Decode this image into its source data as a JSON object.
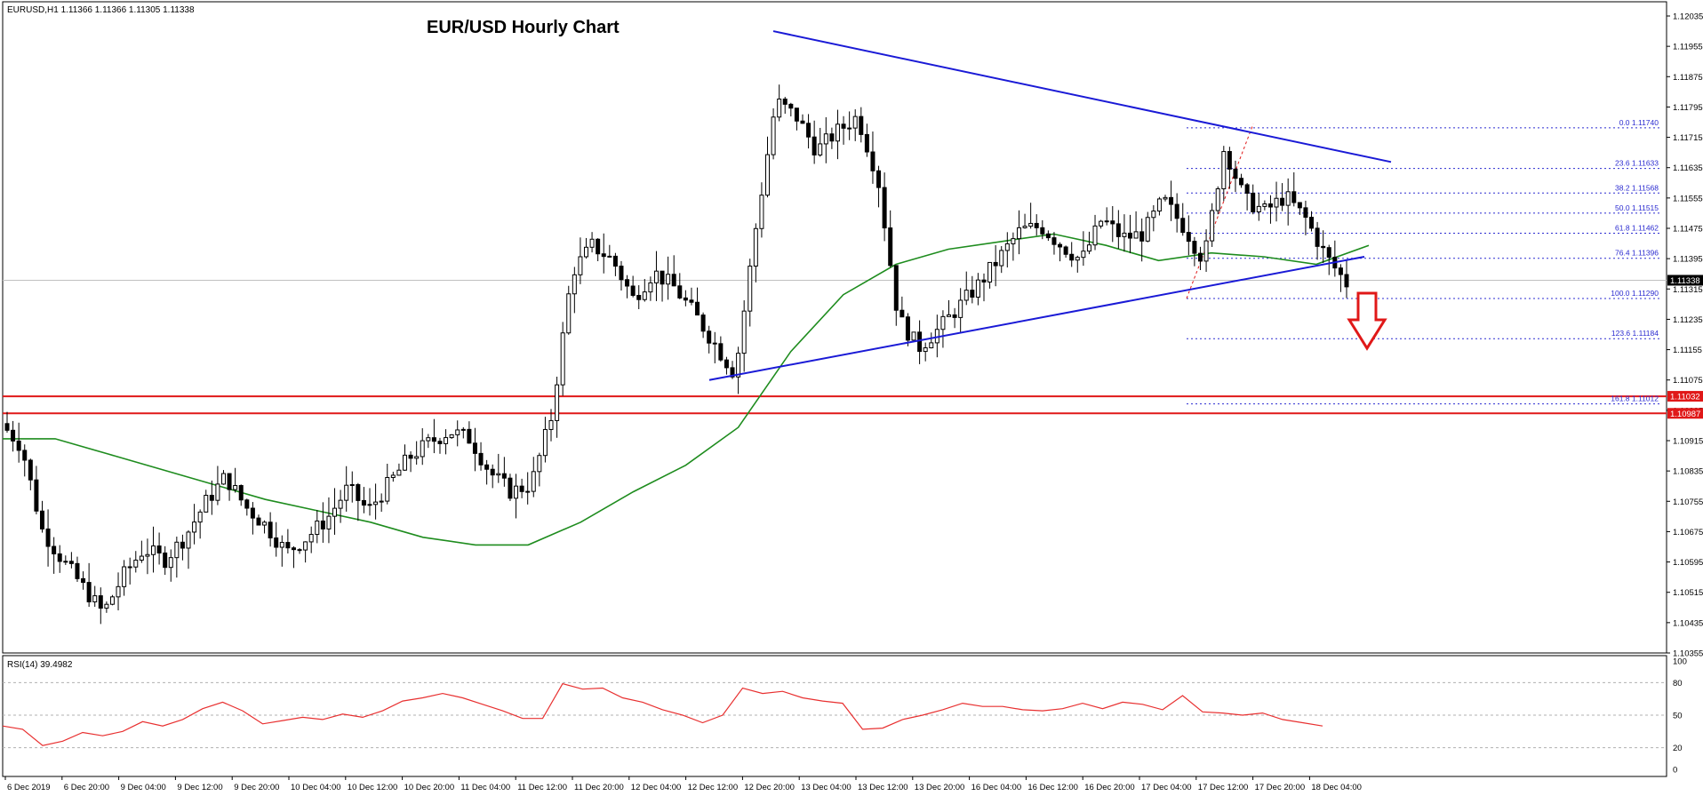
{
  "header": {
    "symbol_info": "EURUSD,H1  1.11366 1.11366 1.11305 1.11338",
    "title": "EUR/USD Hourly Chart"
  },
  "rsi": {
    "label": "RSI(14) 39.4982",
    "levels": [
      "100",
      "80",
      "50",
      "20",
      "0"
    ]
  },
  "colors": {
    "trendline": "#1a1ad6",
    "ma": "#1e8c1e",
    "support": "#e01818",
    "rsi": "#e83030",
    "fib": "#2b2bd0",
    "arrow": "#e01818",
    "candle": "#000000"
  },
  "chart_data": {
    "type": "candlestick",
    "ylim": [
      1.10355,
      1.12035
    ],
    "y_ticks": [
      "1.12035",
      "1.11955",
      "1.11875",
      "1.11795",
      "1.11715",
      "1.11635",
      "1.11555",
      "1.11475",
      "1.11395",
      "1.11315",
      "1.11235",
      "1.11155",
      "1.11075",
      "1.10995",
      "1.10915",
      "1.10835",
      "1.10755",
      "1.10675",
      "1.10595",
      "1.10515",
      "1.10435",
      "1.10355"
    ],
    "x_ticks": [
      "6 Dec 2019",
      "6 Dec 20:00",
      "9 Dec 04:00",
      "9 Dec 12:00",
      "9 Dec 20:00",
      "10 Dec 04:00",
      "10 Dec 12:00",
      "10 Dec 20:00",
      "11 Dec 04:00",
      "11 Dec 12:00",
      "11 Dec 20:00",
      "12 Dec 04:00",
      "12 Dec 12:00",
      "12 Dec 20:00",
      "13 Dec 04:00",
      "13 Dec 12:00",
      "13 Dec 20:00",
      "16 Dec 04:00",
      "16 Dec 12:00",
      "16 Dec 20:00",
      "17 Dec 04:00",
      "17 Dec 12:00",
      "17 Dec 20:00",
      "18 Dec 04:00"
    ],
    "close_path": [
      1.1096,
      1.109,
      1.1068,
      1.106,
      1.1053,
      1.1046,
      1.1056,
      1.1063,
      1.106,
      1.1066,
      1.1075,
      1.1082,
      1.1074,
      1.1069,
      1.1062,
      1.1066,
      1.1071,
      1.1079,
      1.1073,
      1.108,
      1.1087,
      1.1091,
      1.1094,
      1.1092,
      1.1083,
      1.1078,
      1.108,
      1.1098,
      1.1136,
      1.1143,
      1.1139,
      1.1129,
      1.1136,
      1.1132,
      1.1125,
      1.1117,
      1.1109,
      1.1147,
      1.1181,
      1.1177,
      1.1168,
      1.1173,
      1.1177,
      1.1161,
      1.1124,
      1.1116,
      1.1121,
      1.1127,
      1.1133,
      1.114,
      1.1147,
      1.1148,
      1.1143,
      1.1139,
      1.115,
      1.1145,
      1.1146,
      1.1155,
      1.1148,
      1.1139,
      1.1169,
      1.1155,
      1.1152,
      1.1156,
      1.115,
      1.114,
      1.1133
    ],
    "current_price": "1.11338",
    "support_levels": [
      "1.11032",
      "1.10987"
    ],
    "fibonacci": [
      {
        "label": "0.0 1.11740",
        "price": 1.1174
      },
      {
        "label": "23.6 1.11633",
        "price": 1.11633
      },
      {
        "label": "38.2 1.11568",
        "price": 1.11568
      },
      {
        "label": "50.0 1.11515",
        "price": 1.11515
      },
      {
        "label": "61.8 1.11462",
        "price": 1.11462
      },
      {
        "label": "76.4 1.11396",
        "price": 1.11396
      },
      {
        "label": "100.0 1.11290",
        "price": 1.1129
      },
      {
        "label": "123.6 1.11184",
        "price": 1.11184
      },
      {
        "label": "161.8 1.11012",
        "price": 1.11012
      }
    ],
    "moving_average": [
      1.1092,
      1.1092,
      1.1088,
      1.1084,
      1.108,
      1.1076,
      1.1073,
      1.107,
      1.1066,
      1.1064,
      1.1064,
      1.107,
      1.1078,
      1.1085,
      1.1095,
      1.1115,
      1.113,
      1.1138,
      1.1142,
      1.1144,
      1.1146,
      1.1143,
      1.1139,
      1.1141,
      1.114,
      1.1138,
      1.1143
    ],
    "triangle": {
      "upper": [
        1.11995,
        1.1165
      ],
      "lower": [
        1.11075,
        1.114
      ]
    },
    "rsi_values": [
      40,
      37,
      22,
      26,
      34,
      31,
      35,
      44,
      40,
      46,
      56,
      62,
      54,
      42,
      45,
      48,
      46,
      51,
      48,
      54,
      63,
      66,
      70,
      66,
      60,
      54,
      47,
      47,
      79,
      74,
      75,
      66,
      62,
      55,
      50,
      43,
      50,
      75,
      70,
      72,
      66,
      63,
      61,
      37,
      38,
      46,
      50,
      55,
      61,
      58,
      58,
      55,
      54,
      56,
      61,
      56,
      62,
      60,
      55,
      68,
      53,
      52,
      50,
      52,
      46,
      43,
      40
    ]
  }
}
